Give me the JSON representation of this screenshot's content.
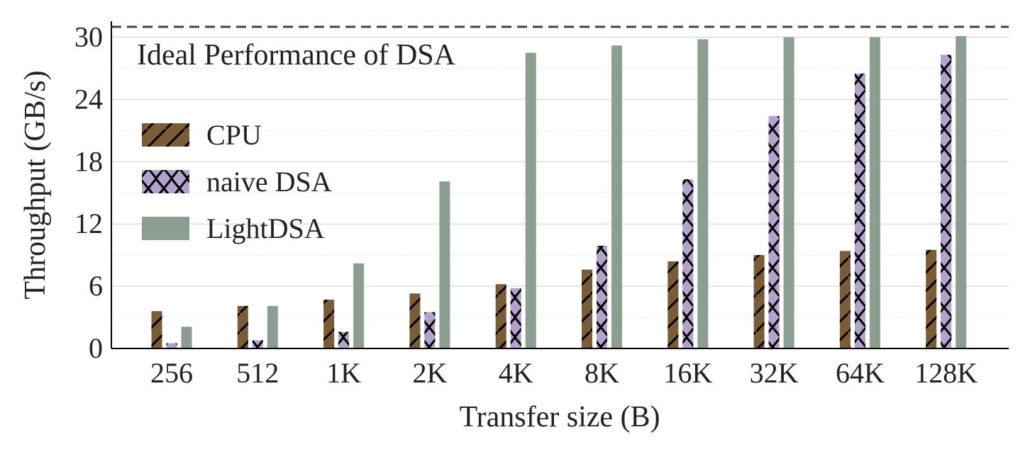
{
  "chart_data": {
    "type": "bar",
    "title": "",
    "xlabel": "Transfer size (B)",
    "ylabel": "Throughput (GB/s)",
    "ylim": [
      0,
      30.5
    ],
    "yticks": [
      0,
      6,
      12,
      18,
      24,
      30
    ],
    "grid": "horizontal",
    "legend_placement": "upper-left",
    "categories": [
      "256",
      "512",
      "1K",
      "2K",
      "4K",
      "8K",
      "16K",
      "32K",
      "64K",
      "128K"
    ],
    "series": [
      {
        "name": "CPU",
        "color": "#7a5c38",
        "hatch": "diagonal",
        "values": [
          3.6,
          4.1,
          4.7,
          5.3,
          6.2,
          7.6,
          8.4,
          9.0,
          9.4,
          9.5
        ]
      },
      {
        "name": "naive DSA",
        "color": "#b3a2cc",
        "hatch": "cross",
        "values": [
          0.5,
          0.8,
          1.6,
          3.5,
          5.8,
          9.9,
          16.3,
          22.4,
          26.5,
          28.3
        ]
      },
      {
        "name": "LightDSA",
        "color": "#8c9e8f",
        "hatch": "none",
        "values": [
          2.1,
          4.1,
          8.2,
          16.1,
          28.5,
          29.2,
          29.8,
          30.0,
          30.0,
          30.1
        ]
      }
    ],
    "annotations": [
      {
        "text": "Ideal Performance of DSA",
        "value": 31.0,
        "style": "dashed-line"
      }
    ]
  }
}
